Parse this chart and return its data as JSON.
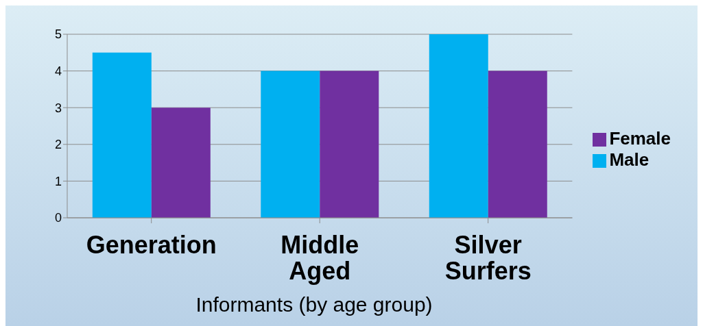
{
  "chart_data": {
    "type": "bar",
    "xlabel": "Informants (by age group)",
    "categories": [
      "Generation",
      "Middle Aged",
      "Silver Surfers"
    ],
    "series": [
      {
        "name": "Male",
        "color": "#00b0f0",
        "values": [
          4.5,
          4,
          5
        ]
      },
      {
        "name": "Female",
        "color": "#7030a0",
        "values": [
          3,
          4,
          4
        ]
      }
    ],
    "ylim": [
      0,
      5
    ],
    "yticks": [
      0,
      1,
      2,
      3,
      4,
      5
    ],
    "grid": "y",
    "legend": "right"
  }
}
